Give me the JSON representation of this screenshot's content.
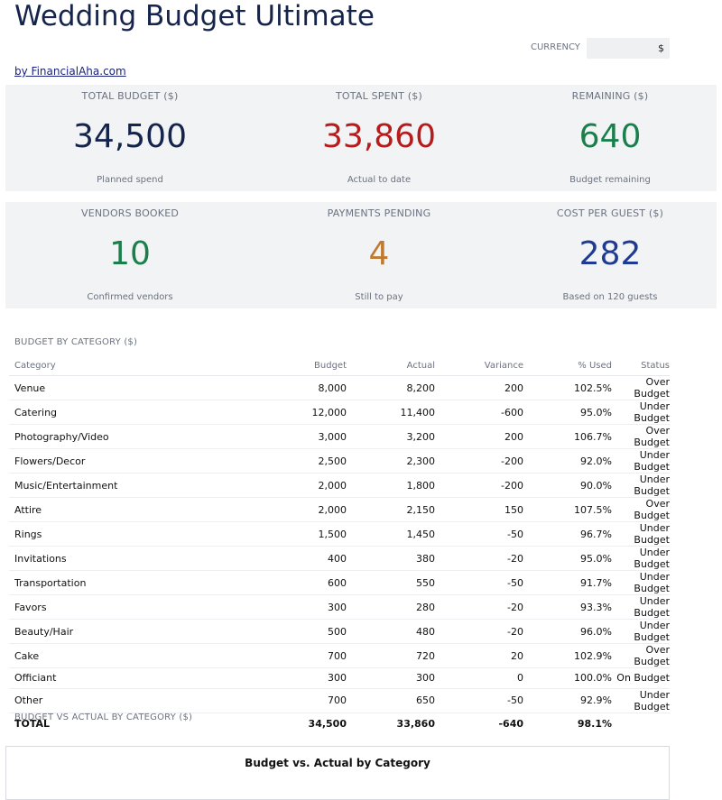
{
  "header": {
    "title": "Wedding Budget Ultimate",
    "byline": "by FinancialAha.com",
    "currency_label": "CURRENCY",
    "currency_value": "$"
  },
  "kpis_row1": [
    {
      "label": "TOTAL BUDGET ($)",
      "value": "34,500",
      "sub": "Planned spend",
      "color": "#15244a"
    },
    {
      "label": "TOTAL SPENT ($)",
      "value": "33,860",
      "sub": "Actual to date",
      "color": "#b71c1c"
    },
    {
      "label": "REMAINING ($)",
      "value": "640",
      "sub": "Budget remaining",
      "color": "#1b7f4b"
    }
  ],
  "kpis_row2": [
    {
      "label": "VENDORS BOOKED",
      "value": "10",
      "sub": "Confirmed vendors",
      "color": "#1b7f4b"
    },
    {
      "label": "PAYMENTS PENDING",
      "value": "4",
      "sub": "Still to pay",
      "color": "#c07a30"
    },
    {
      "label": "COST PER GUEST ($)",
      "value": "282",
      "sub": "Based on 120 guests",
      "color": "#1f3a93"
    }
  ],
  "budget_section": {
    "label": "BUDGET BY CATEGORY ($)",
    "columns": [
      "Category",
      "Budget",
      "Actual",
      "Variance",
      "% Used",
      "Status"
    ],
    "rows": [
      [
        "Venue",
        "8,000",
        "8,200",
        "200",
        "102.5%",
        "Over Budget"
      ],
      [
        "Catering",
        "12,000",
        "11,400",
        "-600",
        "95.0%",
        "Under Budget"
      ],
      [
        "Photography/Video",
        "3,000",
        "3,200",
        "200",
        "106.7%",
        "Over Budget"
      ],
      [
        "Flowers/Decor",
        "2,500",
        "2,300",
        "-200",
        "92.0%",
        "Under Budget"
      ],
      [
        "Music/Entertainment",
        "2,000",
        "1,800",
        "-200",
        "90.0%",
        "Under Budget"
      ],
      [
        "Attire",
        "2,000",
        "2,150",
        "150",
        "107.5%",
        "Over Budget"
      ],
      [
        "Rings",
        "1,500",
        "1,450",
        "-50",
        "96.7%",
        "Under Budget"
      ],
      [
        "Invitations",
        "400",
        "380",
        "-20",
        "95.0%",
        "Under Budget"
      ],
      [
        "Transportation",
        "600",
        "550",
        "-50",
        "91.7%",
        "Under Budget"
      ],
      [
        "Favors",
        "300",
        "280",
        "-20",
        "93.3%",
        "Under Budget"
      ],
      [
        "Beauty/Hair",
        "500",
        "480",
        "-20",
        "96.0%",
        "Under Budget"
      ],
      [
        "Cake",
        "700",
        "720",
        "20",
        "102.9%",
        "Over Budget"
      ],
      [
        "Officiant",
        "300",
        "300",
        "0",
        "100.0%",
        "On Budget"
      ],
      [
        "Other",
        "700",
        "650",
        "-50",
        "92.9%",
        "Under Budget"
      ]
    ],
    "total": [
      "TOTAL",
      "34,500",
      "33,860",
      "-640",
      "98.1%",
      ""
    ]
  },
  "chart_section": {
    "label": "BUDGET VS ACTUAL BY CATEGORY ($)",
    "chart_title": "Budget vs. Actual by Category"
  },
  "colors": {
    "over": "#b71c1c",
    "under": "#1b7f4b",
    "panel": "#f1f3f5"
  }
}
